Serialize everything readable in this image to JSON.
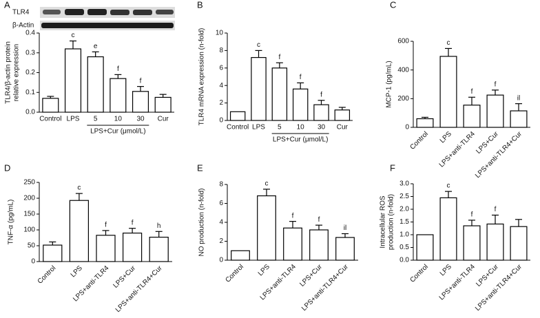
{
  "chart_data": [
    {
      "type": "bar",
      "panel": "A",
      "blot_labels": [
        "TLR4",
        "β-Actin"
      ],
      "ylabel": [
        "TLR4/β-actin protein",
        "relative expression"
      ],
      "categories": [
        "Control",
        "LPS",
        "5",
        "10",
        "30",
        "Cur"
      ],
      "group_label": "LPS+Cur (μmol/L)",
      "values": [
        0.07,
        0.32,
        0.28,
        0.17,
        0.105,
        0.075
      ],
      "errors": [
        0.01,
        0.04,
        0.025,
        0.02,
        0.025,
        0.015
      ],
      "significance": [
        null,
        "c",
        "e",
        "f",
        "f",
        null
      ],
      "ylim": [
        0,
        0.4
      ],
      "yticks": [
        {
          "value": 0,
          "label": "0.0"
        },
        0.1,
        0.2,
        0.3,
        0.4
      ]
    },
    {
      "type": "bar",
      "panel": "B",
      "ylabel": [
        "TLR4 mRNA expression (n-fold)"
      ],
      "categories": [
        "Control",
        "LPS",
        "5",
        "10",
        "30",
        "Cur"
      ],
      "group_label": "LPS+Cur (μmol/L)",
      "values": [
        1,
        7.2,
        6.0,
        3.6,
        1.8,
        1.2
      ],
      "errors": [
        null,
        0.8,
        0.6,
        0.7,
        0.5,
        0.3
      ],
      "significance": [
        null,
        "c",
        "f",
        "f",
        "f",
        null
      ],
      "ylim": [
        0,
        10
      ],
      "yticks": [
        0,
        2,
        4,
        6,
        8,
        10
      ]
    },
    {
      "type": "bar",
      "panel": "C",
      "ylabel": [
        "MCP-1 (pg/mL)"
      ],
      "categories": [
        "Control",
        "LPS",
        "LPS+anti-TLR4",
        "LPS+Cur",
        "LPS+anti-TLR4+Cur"
      ],
      "values": [
        60,
        495,
        155,
        225,
        115
      ],
      "errors": [
        10,
        55,
        55,
        35,
        50
      ],
      "significance": [
        null,
        "c",
        "f",
        "f",
        "il"
      ],
      "ylim": [
        0,
        600
      ],
      "yticks": [
        0,
        200,
        400,
        600
      ]
    },
    {
      "type": "bar",
      "panel": "D",
      "ylabel": [
        "TNF-α (pg/mL)"
      ],
      "categories": [
        "Control",
        "LPS",
        "LPS+anti-TLR4",
        "LPS+Cur",
        "LPS+anti-TLR4+Cur"
      ],
      "values": [
        52,
        193,
        83,
        90,
        77
      ],
      "errors": [
        10,
        22,
        15,
        15,
        18
      ],
      "significance": [
        null,
        "c",
        "f",
        "f",
        "h"
      ],
      "ylim": [
        0,
        250
      ],
      "yticks": [
        0,
        50,
        100,
        150,
        200,
        250
      ]
    },
    {
      "type": "bar",
      "panel": "E",
      "ylabel": [
        "NO production (n-fold)"
      ],
      "categories": [
        "Control",
        "LPS",
        "LPS+anti-TLR4",
        "LPS+Cur",
        "LPS+anti-TLR4+Cur"
      ],
      "values": [
        1,
        6.8,
        3.4,
        3.2,
        2.4
      ],
      "errors": [
        null,
        0.7,
        0.7,
        0.5,
        0.4
      ],
      "significance": [
        null,
        "c",
        "f",
        "f",
        "il"
      ],
      "ylim": [
        0,
        8
      ],
      "yticks": [
        0,
        2,
        4,
        6,
        8
      ]
    },
    {
      "type": "bar",
      "panel": "F",
      "ylabel": [
        "Intracellular ROS",
        "production (n-fold)"
      ],
      "categories": [
        "Control",
        "LPS",
        "LPS+anti-TLR4",
        "LPS+Cur",
        "LPS+anti-TLR4+Cur"
      ],
      "values": [
        1,
        2.45,
        1.35,
        1.42,
        1.32
      ],
      "errors": [
        null,
        0.25,
        0.22,
        0.35,
        0.28
      ],
      "significance": [
        null,
        "c",
        "f",
        "f",
        null
      ],
      "ylim": [
        0,
        3.0
      ],
      "yticks": [
        {
          "value": 0,
          "label": "0.0"
        },
        0.5,
        {
          "value": 1,
          "label": "1.0"
        },
        1.5,
        {
          "value": 2,
          "label": "2.0"
        },
        2.5,
        {
          "value": 3,
          "label": "3.0"
        }
      ]
    }
  ]
}
